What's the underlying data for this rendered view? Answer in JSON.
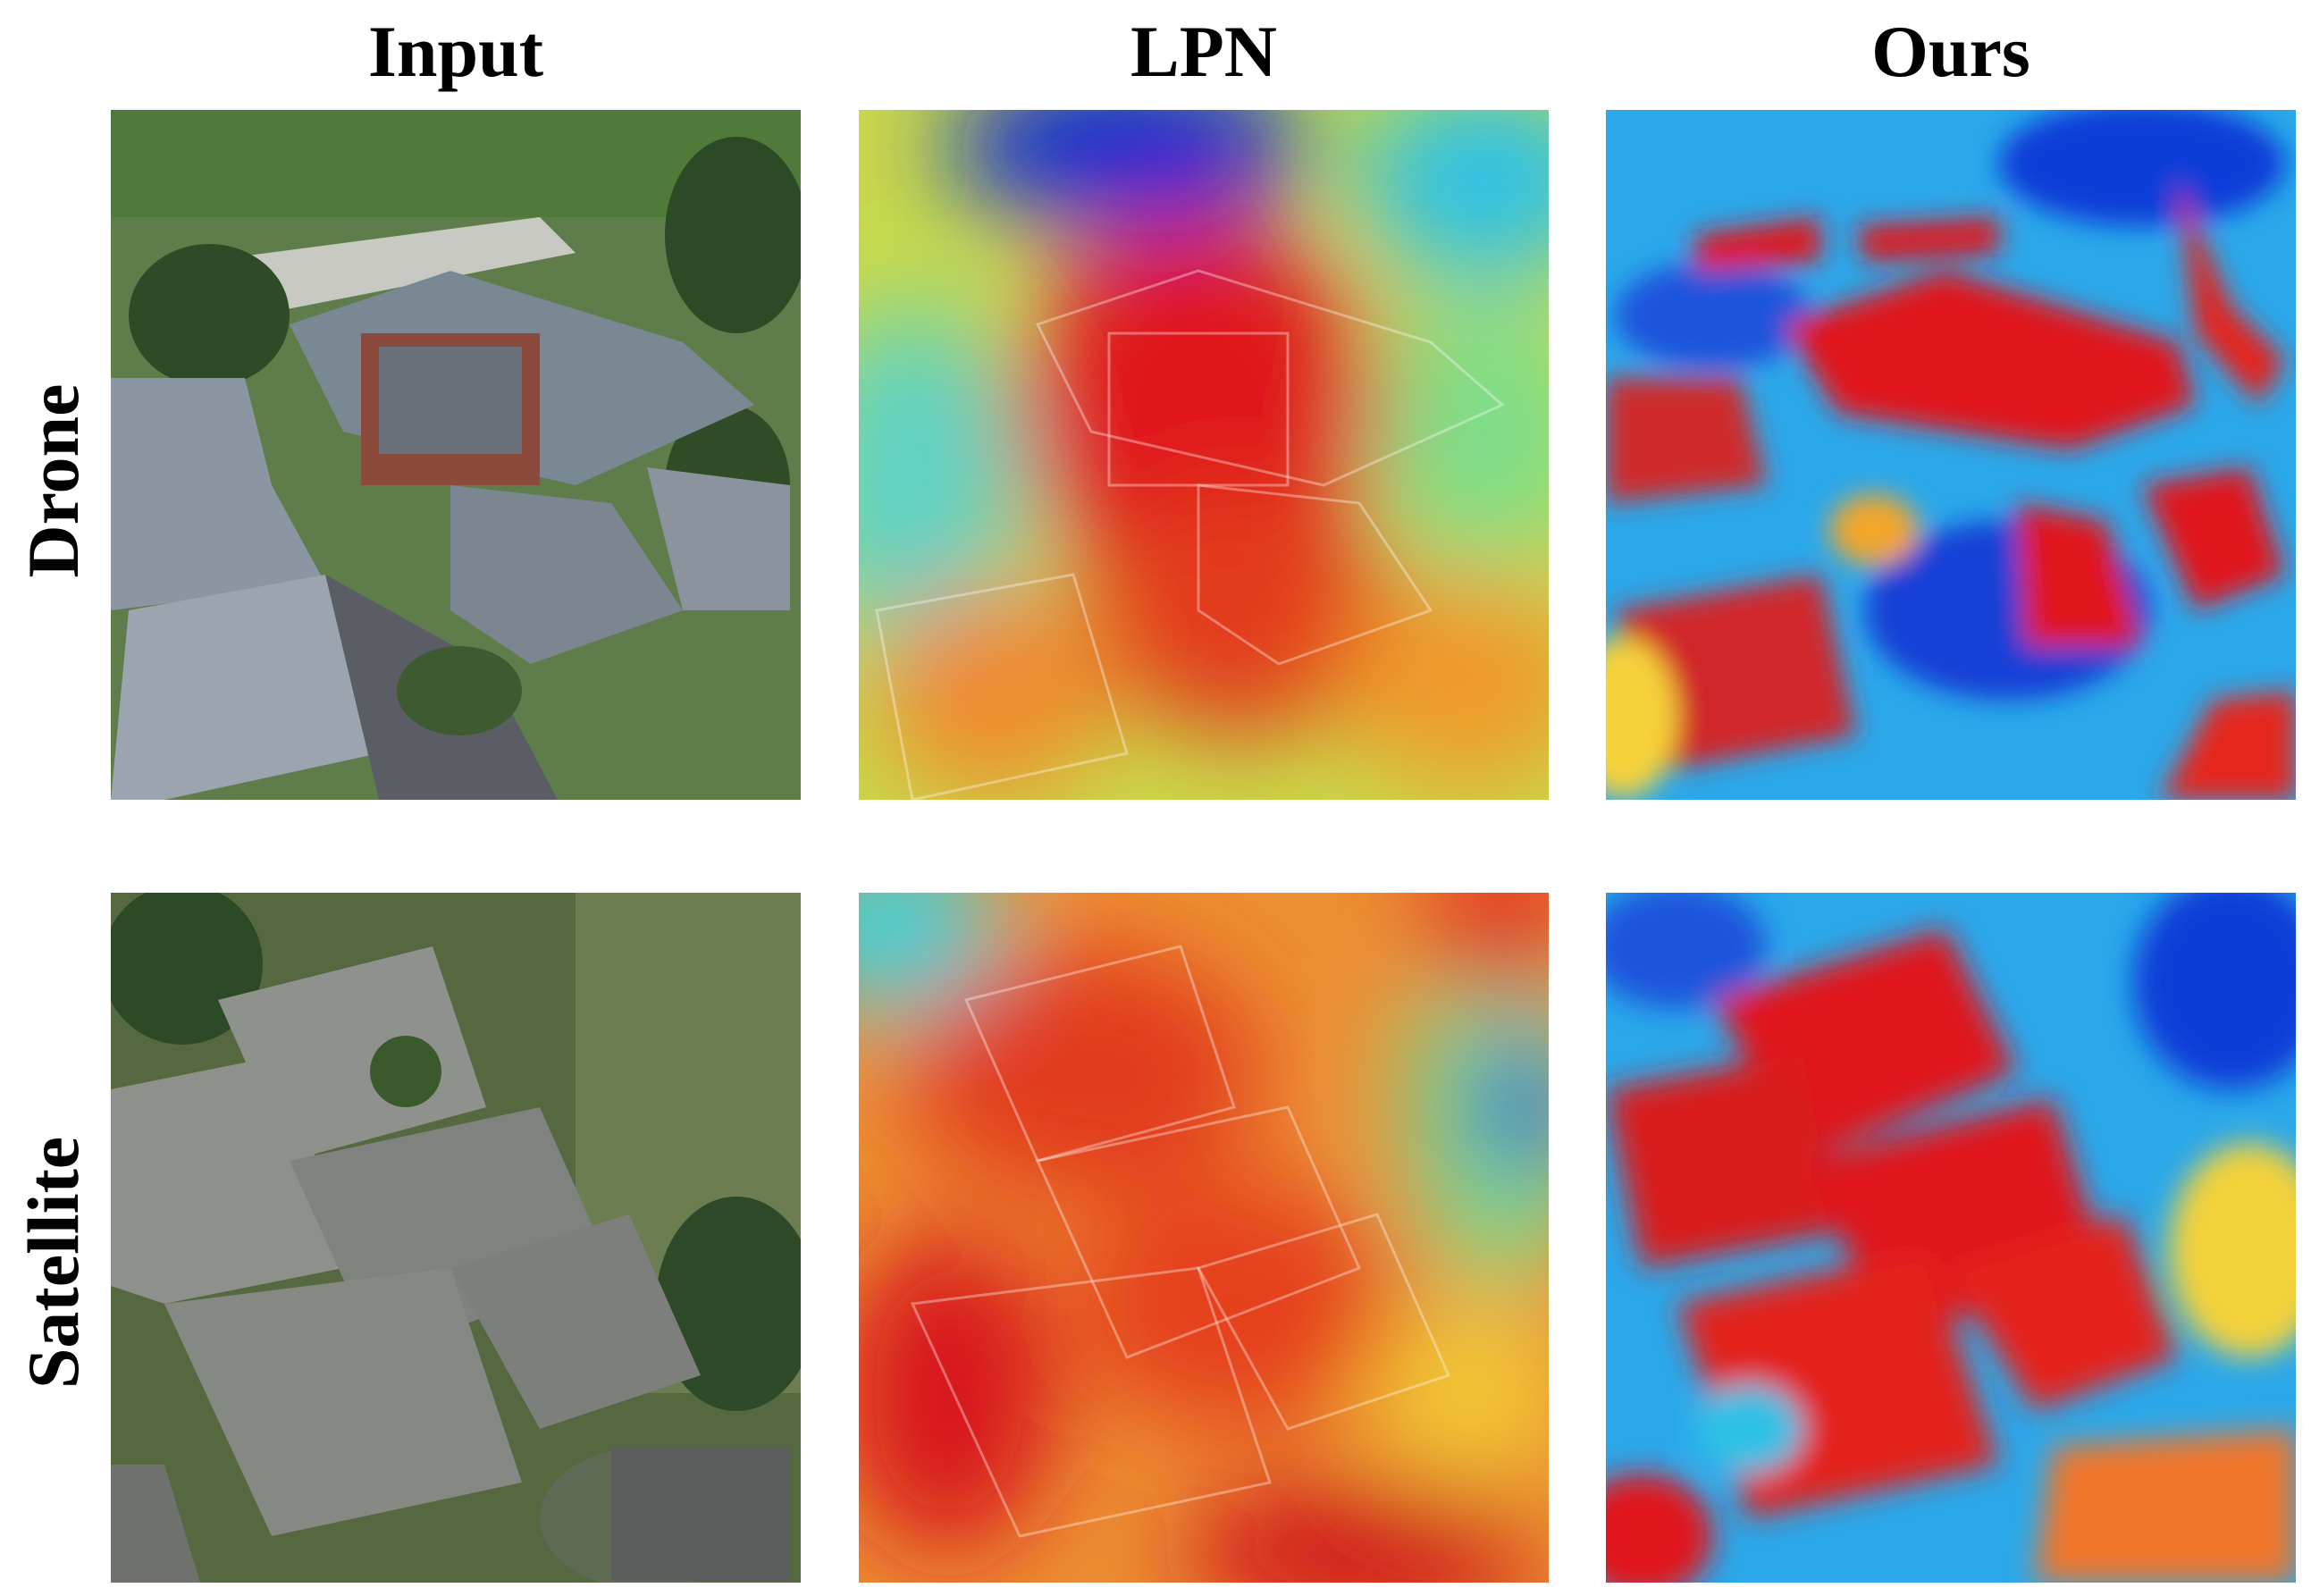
{
  "columns": [
    "Input",
    "LPN",
    "Ours"
  ],
  "rows": [
    "Drone",
    "Satellite"
  ],
  "panels": [
    {
      "id": "drone-input",
      "row": 0,
      "col": 0,
      "kind": "aerial-photo",
      "view": "oblique"
    },
    {
      "id": "drone-lpn",
      "row": 0,
      "col": 1,
      "kind": "heatmap",
      "style": "smooth"
    },
    {
      "id": "drone-ours",
      "row": 0,
      "col": 2,
      "kind": "heatmap",
      "style": "sharp"
    },
    {
      "id": "satellite-input",
      "row": 1,
      "col": 0,
      "kind": "aerial-photo",
      "view": "top-down"
    },
    {
      "id": "satellite-lpn",
      "row": 1,
      "col": 1,
      "kind": "heatmap",
      "style": "smooth"
    },
    {
      "id": "satellite-ours",
      "row": 1,
      "col": 2,
      "kind": "heatmap",
      "style": "sharp"
    }
  ],
  "colors": {
    "jet_low": "#0a2bd6",
    "jet_mid": "#f5e63a",
    "jet_high": "#e0171b"
  }
}
